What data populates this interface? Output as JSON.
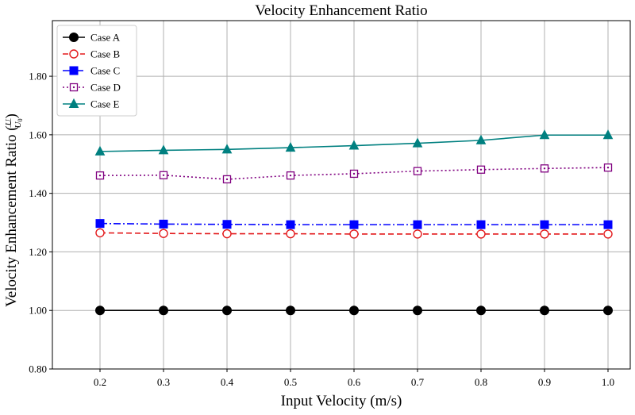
{
  "chart_data": {
    "type": "line",
    "title": "Velocity Enhancement Ratio",
    "xlabel": "Input Velocity (m/s)",
    "ylabel": "Velocity Enhancement Ratio",
    "ylabel_math": {
      "num": "U",
      "den_base": "U",
      "den_sub": "0"
    },
    "x": [
      0.2,
      0.3,
      0.4,
      0.5,
      0.6,
      0.7,
      0.8,
      0.9,
      1.0
    ],
    "xticks": [
      "0.2",
      "0.3",
      "0.4",
      "0.5",
      "0.6",
      "0.7",
      "0.8",
      "0.9",
      "1.0"
    ],
    "yticks": [
      "0.80",
      "1.00",
      "1.20",
      "1.40",
      "1.60",
      "1.80"
    ],
    "xlim": [
      0.125,
      1.035
    ],
    "ylim": [
      0.8,
      1.99
    ],
    "grid": true,
    "legend_position": "top-left",
    "series": [
      {
        "name": "Case A",
        "color": "#000000",
        "dash": "solid",
        "marker": "circle-filled",
        "values": [
          1.0,
          1.0,
          1.0,
          1.0,
          1.0,
          1.0,
          1.0,
          1.0,
          1.0
        ]
      },
      {
        "name": "Case B",
        "color": "#e31a1c",
        "dash": "dashed",
        "marker": "circle-open",
        "values": [
          1.265,
          1.263,
          1.262,
          1.262,
          1.261,
          1.261,
          1.261,
          1.261,
          1.261
        ]
      },
      {
        "name": "Case C",
        "color": "#0000ff",
        "dash": "dashdot",
        "marker": "square-filled",
        "values": [
          1.297,
          1.295,
          1.294,
          1.293,
          1.293,
          1.293,
          1.293,
          1.293,
          1.293
        ]
      },
      {
        "name": "Case D",
        "color": "#800080",
        "dash": "dotted",
        "marker": "square-open-dot",
        "values": [
          1.461,
          1.462,
          1.448,
          1.461,
          1.467,
          1.476,
          1.481,
          1.485,
          1.488
        ]
      },
      {
        "name": "Case E",
        "color": "#008080",
        "dash": "solid",
        "marker": "triangle-filled",
        "values": [
          1.543,
          1.547,
          1.55,
          1.556,
          1.563,
          1.571,
          1.581,
          1.599,
          1.599
        ]
      }
    ]
  }
}
